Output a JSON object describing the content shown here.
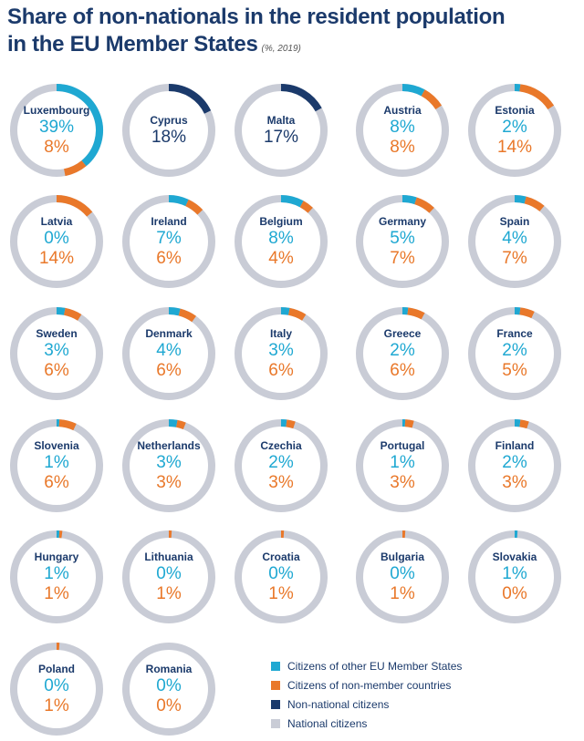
{
  "title": {
    "line1": "Share of non-nationals in the resident population",
    "line2": "in the EU Member States",
    "subtitle": "(%, 2019)"
  },
  "colors": {
    "eu": "#1fa8d2",
    "non_member": "#e9782a",
    "non_national": "#1b3a6b",
    "national": "#c9ccd6"
  },
  "chart_data": {
    "type": "pie",
    "title": "Share of non-nationals in the resident population in the EU Member States",
    "unit": "(%, 2019)",
    "series": [
      {
        "name": "Citizens of other EU Member States",
        "key": "eu"
      },
      {
        "name": "Citizens of non-member countries",
        "key": "nm"
      },
      {
        "name": "Non-national citizens",
        "key": "nn"
      },
      {
        "name": "National citizens",
        "key": "national"
      }
    ],
    "countries": [
      {
        "name": "Luxembourg",
        "eu": 39,
        "nm": 8
      },
      {
        "name": "Cyprus",
        "nn": 18
      },
      {
        "name": "Malta",
        "nn": 17
      },
      {
        "name": "Austria",
        "eu": 8,
        "nm": 8
      },
      {
        "name": "Estonia",
        "eu": 2,
        "nm": 14
      },
      {
        "name": "Latvia",
        "eu": 0,
        "nm": 14
      },
      {
        "name": "Ireland",
        "eu": 7,
        "nm": 6
      },
      {
        "name": "Belgium",
        "eu": 8,
        "nm": 4
      },
      {
        "name": "Germany",
        "eu": 5,
        "nm": 7
      },
      {
        "name": "Spain",
        "eu": 4,
        "nm": 7
      },
      {
        "name": "Sweden",
        "eu": 3,
        "nm": 6
      },
      {
        "name": "Denmark",
        "eu": 4,
        "nm": 6
      },
      {
        "name": "Italy",
        "eu": 3,
        "nm": 6
      },
      {
        "name": "Greece",
        "eu": 2,
        "nm": 6
      },
      {
        "name": "France",
        "eu": 2,
        "nm": 5
      },
      {
        "name": "Slovenia",
        "eu": 1,
        "nm": 6
      },
      {
        "name": "Netherlands",
        "eu": 3,
        "nm": 3
      },
      {
        "name": "Czechia",
        "eu": 2,
        "nm": 3
      },
      {
        "name": "Portugal",
        "eu": 1,
        "nm": 3
      },
      {
        "name": "Finland",
        "eu": 2,
        "nm": 3
      },
      {
        "name": "Hungary",
        "eu": 1,
        "nm": 1
      },
      {
        "name": "Lithuania",
        "eu": 0,
        "nm": 1
      },
      {
        "name": "Croatia",
        "eu": 0,
        "nm": 1
      },
      {
        "name": "Bulgaria",
        "eu": 0,
        "nm": 1
      },
      {
        "name": "Slovakia",
        "eu": 1,
        "nm": 0
      },
      {
        "name": "Poland",
        "eu": 0,
        "nm": 1
      },
      {
        "name": "Romania",
        "eu": 0,
        "nm": 0
      }
    ]
  },
  "legend": [
    {
      "label": "Citizens of other EU Member States",
      "color": "#1fa8d2"
    },
    {
      "label": "Citizens of non-member countries",
      "color": "#e9782a"
    },
    {
      "label": "Non-national citizens",
      "color": "#1b3a6b"
    },
    {
      "label": "National citizens",
      "color": "#c9ccd6"
    }
  ]
}
